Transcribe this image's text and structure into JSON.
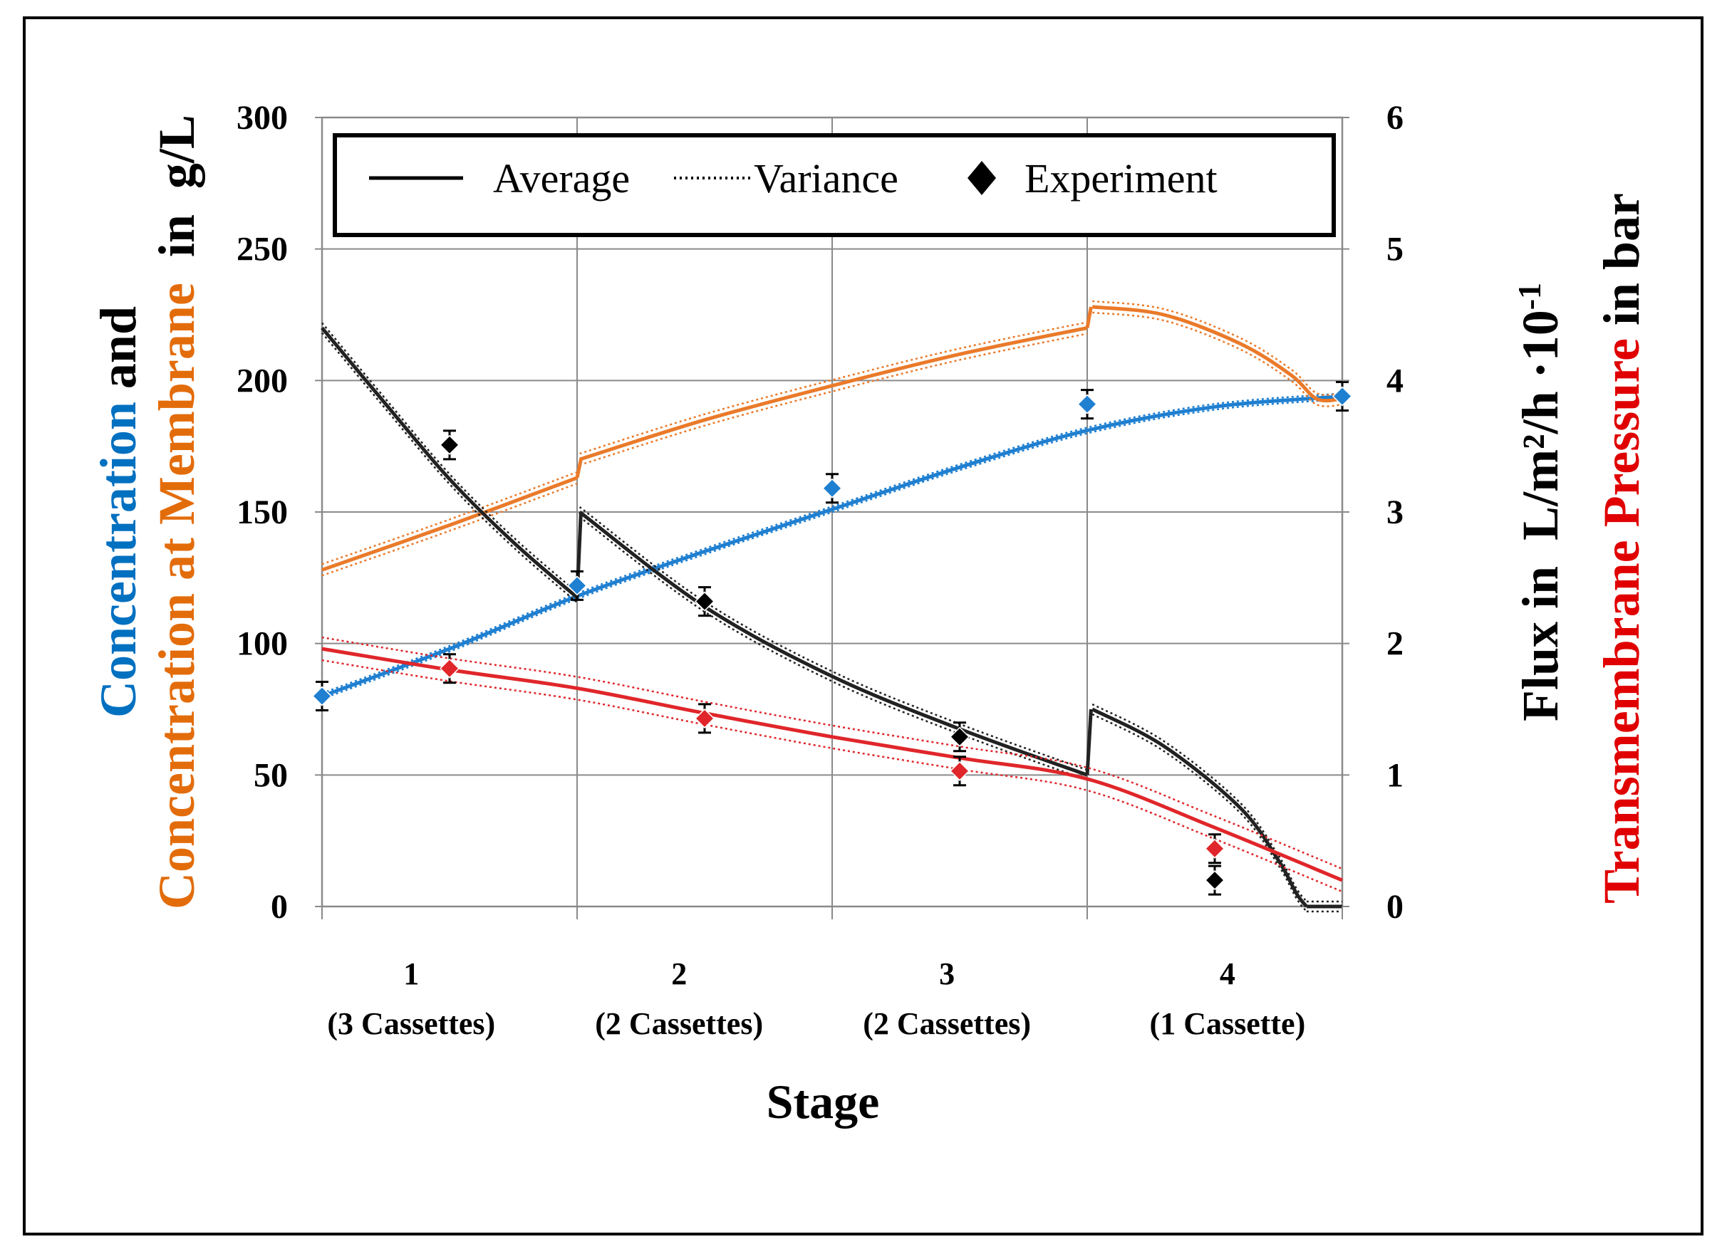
{
  "chart_data": {
    "type": "line",
    "xlabel": "Stage",
    "categories": [
      {
        "label": "1",
        "sub": "(3 Cassettes)"
      },
      {
        "label": "2",
        "sub": "(2 Cassettes)"
      },
      {
        "label": "3",
        "sub": "(2 Cassettes)"
      },
      {
        "label": "4",
        "sub": "(1 Cassette)"
      }
    ],
    "x_range": [
      0,
      4
    ],
    "stage_boundaries": [
      1,
      2,
      3
    ],
    "y_left": {
      "range": [
        0,
        300
      ],
      "ticks": [
        0,
        50,
        100,
        150,
        200,
        250,
        300
      ],
      "label_parts": [
        {
          "text": "Concentration",
          "color": "#0070C0"
        },
        {
          "text": " and",
          "color": "#000000"
        }
      ],
      "label_parts_2": [
        {
          "text": "Concentration at Membrane",
          "color": "#E36C0A"
        },
        {
          "text": "  in  g/L",
          "color": "#000000"
        }
      ]
    },
    "y_right": {
      "range": [
        0,
        6
      ],
      "ticks": [
        0,
        1,
        2,
        3,
        4,
        5,
        6
      ],
      "label_flux": "Flux in  L/m²/h ·10",
      "label_flux_sup": "-1",
      "label_parts": [
        {
          "text": "Transmembrane Pressure",
          "color": "#E00000"
        },
        {
          "text": " in bar",
          "color": "#000000"
        }
      ]
    },
    "legend": {
      "average": "Average",
      "variance": "Variance",
      "experiment": "Experiment"
    },
    "colors": {
      "concentration": "#1F7FD0",
      "membrane": "#EA7A2A",
      "flux": "#222222",
      "tmp": "#E0262A"
    },
    "series": [
      {
        "name": "Concentration",
        "axis": "left",
        "x": [
          0,
          0.5,
          1,
          1.5,
          2,
          2.5,
          3,
          3.5,
          4
        ],
        "y": [
          80,
          98,
          118,
          135,
          151,
          167,
          181,
          190,
          194
        ]
      },
      {
        "name": "Concentration at Membrane",
        "axis": "left",
        "segments": [
          {
            "x": [
              0,
              0.5,
              1
            ],
            "y": [
              128,
              145,
              163
            ]
          },
          {
            "x": [
              1.01,
              1.5,
              2,
              2.5,
              3
            ],
            "y": [
              170,
              185,
              198,
              210,
              220
            ]
          },
          {
            "x": [
              3.02,
              3.3,
              3.6,
              3.8,
              3.9,
              4
            ],
            "y": [
              228,
              225,
              214,
              202,
              193,
              193
            ]
          }
        ]
      },
      {
        "name": "Flux",
        "axis": "right",
        "segments": [
          {
            "x": [
              0,
              0.25,
              0.5,
              0.75,
              1
            ],
            "y": [
              4.4,
              3.82,
              3.25,
              2.77,
              2.35
            ]
          },
          {
            "x": [
              1.01,
              1.5,
              2,
              2.5,
              3
            ],
            "y": [
              3.0,
              2.28,
              1.75,
              1.35,
              1.0
            ]
          },
          {
            "x": [
              3.02,
              3.3,
              3.6,
              3.75,
              3.82,
              3.86
            ],
            "y": [
              1.5,
              1.22,
              0.75,
              0.35,
              0.1,
              0
            ]
          },
          {
            "x": [
              3.86,
              4
            ],
            "y": [
              0,
              0
            ]
          }
        ]
      },
      {
        "name": "Transmembrane Pressure",
        "axis": "right",
        "x": [
          0,
          0.5,
          1,
          1.5,
          2,
          2.5,
          3,
          3.5,
          4
        ],
        "y": [
          1.96,
          1.8,
          1.66,
          1.47,
          1.29,
          1.13,
          0.97,
          0.6,
          0.2
        ]
      }
    ],
    "experiment": {
      "concentration": [
        [
          0,
          80
        ],
        [
          1,
          122
        ],
        [
          2,
          159
        ],
        [
          3,
          191
        ],
        [
          4,
          194
        ]
      ],
      "membrane_tmp": [
        [
          0.5,
          1.81
        ],
        [
          1.5,
          1.43
        ],
        [
          2.5,
          1.03
        ],
        [
          3.5,
          0.44
        ]
      ],
      "flux": [
        [
          0.5,
          3.51
        ],
        [
          1.5,
          2.32
        ],
        [
          2.5,
          1.29
        ],
        [
          3.5,
          0.2
        ]
      ]
    }
  }
}
